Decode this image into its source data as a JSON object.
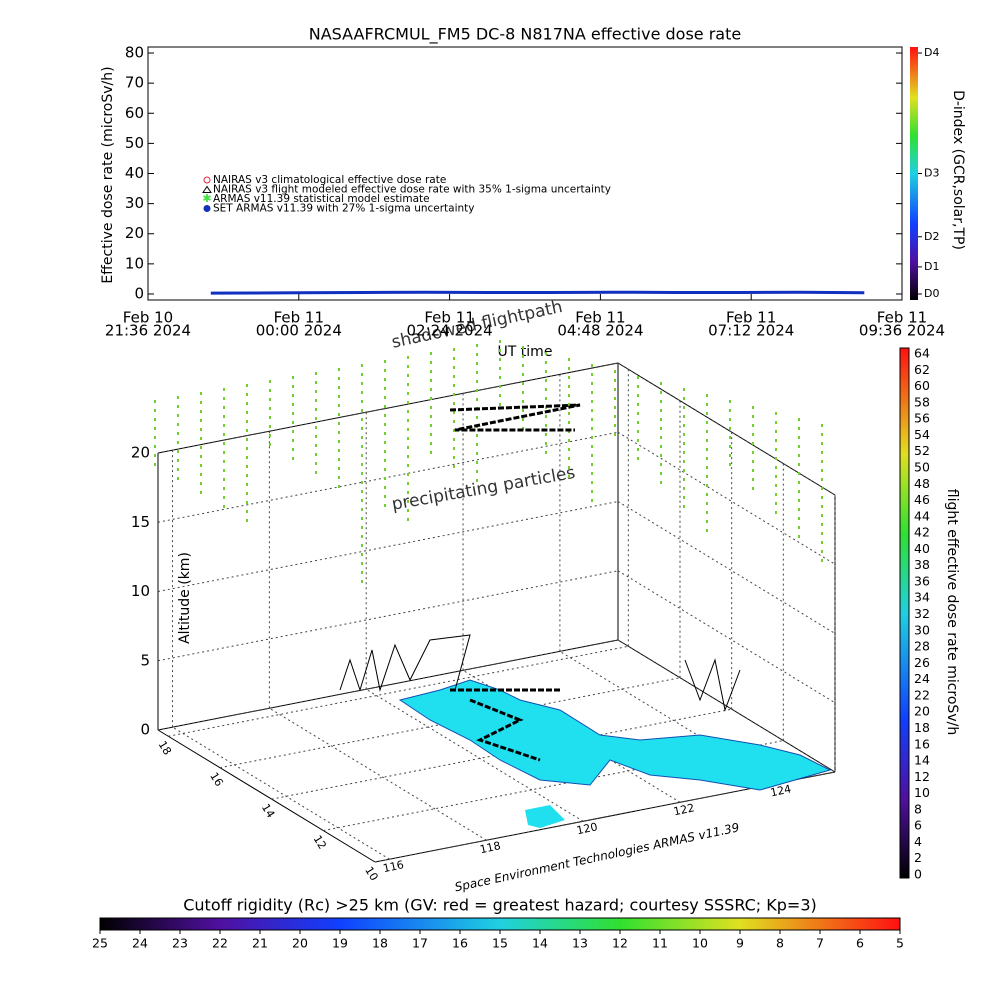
{
  "chart_data": [
    {
      "type": "line",
      "title": "NASAAFRCMUL_FM5 DC-8   N817NA effective dose rate",
      "y_label": "Effective dose rate (microSv/h)",
      "x_label": "UT time",
      "y2_label": "D-index (GCR,solar,TP)",
      "ylim": [
        -2,
        82
      ],
      "yticks": [
        0,
        10,
        20,
        30,
        40,
        50,
        60,
        70,
        80
      ],
      "y2lim": [
        -2,
        82
      ],
      "y2ticks": [
        {
          "value": 0,
          "label": "D0"
        },
        {
          "value": 9,
          "label": "D1"
        },
        {
          "value": 19,
          "label": "D2"
        },
        {
          "value": 40,
          "label": "D3"
        },
        {
          "value": 80,
          "label": "D4"
        }
      ],
      "xlim": [
        "2024-02-10T21:36",
        "2024-02-11T09:36"
      ],
      "xticks": [
        {
          "value": "2024-02-10T21:36",
          "label": [
            "Feb 10",
            "21:36 2024"
          ]
        },
        {
          "value": "2024-02-11T00:00",
          "label": [
            "Feb 11",
            "00:00 2024"
          ]
        },
        {
          "value": "2024-02-11T02:24",
          "label": [
            "Feb 11",
            "02:24 2024"
          ]
        },
        {
          "value": "2024-02-11T04:48",
          "label": [
            "Feb 11",
            "04:48 2024"
          ]
        },
        {
          "value": "2024-02-11T07:12",
          "label": [
            "Feb 11",
            "07:12 2024"
          ]
        },
        {
          "value": "2024-02-11T09:36",
          "label": [
            "Feb 11",
            "09:36 2024"
          ]
        }
      ],
      "series": [
        {
          "name": "NAIRAS v3 climatological effective dose rate",
          "color": "#e0283c"
        },
        {
          "name": "NAIRAS v3 flight modeled effective dose rate with 35% 1-sigma uncertainty",
          "color": "#000000"
        },
        {
          "name": "ARMAS v11.39 statistical model estimate",
          "color": "#40e040"
        },
        {
          "name": "SET ARMAS v11.39 with 27% 1-sigma uncertainty",
          "color": "#1030c0",
          "x": [
            "2024-02-10T22:36",
            "2024-02-11T00:00",
            "2024-02-11T01:00",
            "2024-02-11T02:00",
            "2024-02-11T03:00",
            "2024-02-11T04:00",
            "2024-02-11T05:00",
            "2024-02-11T06:00",
            "2024-02-11T07:00",
            "2024-02-11T08:00",
            "2024-02-11T09:00"
          ],
          "values": [
            0.3,
            0.4,
            0.5,
            0.6,
            0.5,
            0.5,
            0.6,
            0.5,
            0.5,
            0.6,
            0.4
          ]
        }
      ]
    },
    {
      "type": "surface3d",
      "z_label": "Altitude (km)",
      "zlim": [
        0,
        20
      ],
      "zticks": [
        0,
        5,
        10,
        15,
        20
      ],
      "xlim": [
        115.7,
        125.2
      ],
      "xticks": [
        116,
        118,
        120,
        122,
        124
      ],
      "ylim": [
        10,
        18.4
      ],
      "yticks": [
        10,
        12,
        14,
        16,
        18
      ],
      "annotations": [
        "shadowed flightpath",
        "precipitating particles",
        "Space Environment Technologies ARMAS v11.39"
      ],
      "colorbar": {
        "label": "flight effective dose rate microSv/h",
        "lim": [
          0,
          64
        ],
        "ticks": [
          0,
          2,
          4,
          6,
          8,
          10,
          12,
          14,
          16,
          18,
          20,
          22,
          24,
          26,
          28,
          30,
          32,
          34,
          36,
          38,
          40,
          42,
          44,
          46,
          48,
          50,
          52,
          54,
          56,
          58,
          60,
          62,
          64
        ]
      },
      "rigidity_bar": {
        "label": "Cutoff rigidity (Rc) >25 km (GV: red = greatest hazard; courtesy SSSRC; Kp=3)",
        "lim": [
          25,
          5
        ],
        "ticks": [
          25,
          24,
          23,
          22,
          21,
          20,
          19,
          18,
          17,
          16,
          15,
          14,
          13,
          12,
          11,
          10,
          9,
          8,
          7,
          6,
          5
        ]
      }
    }
  ]
}
